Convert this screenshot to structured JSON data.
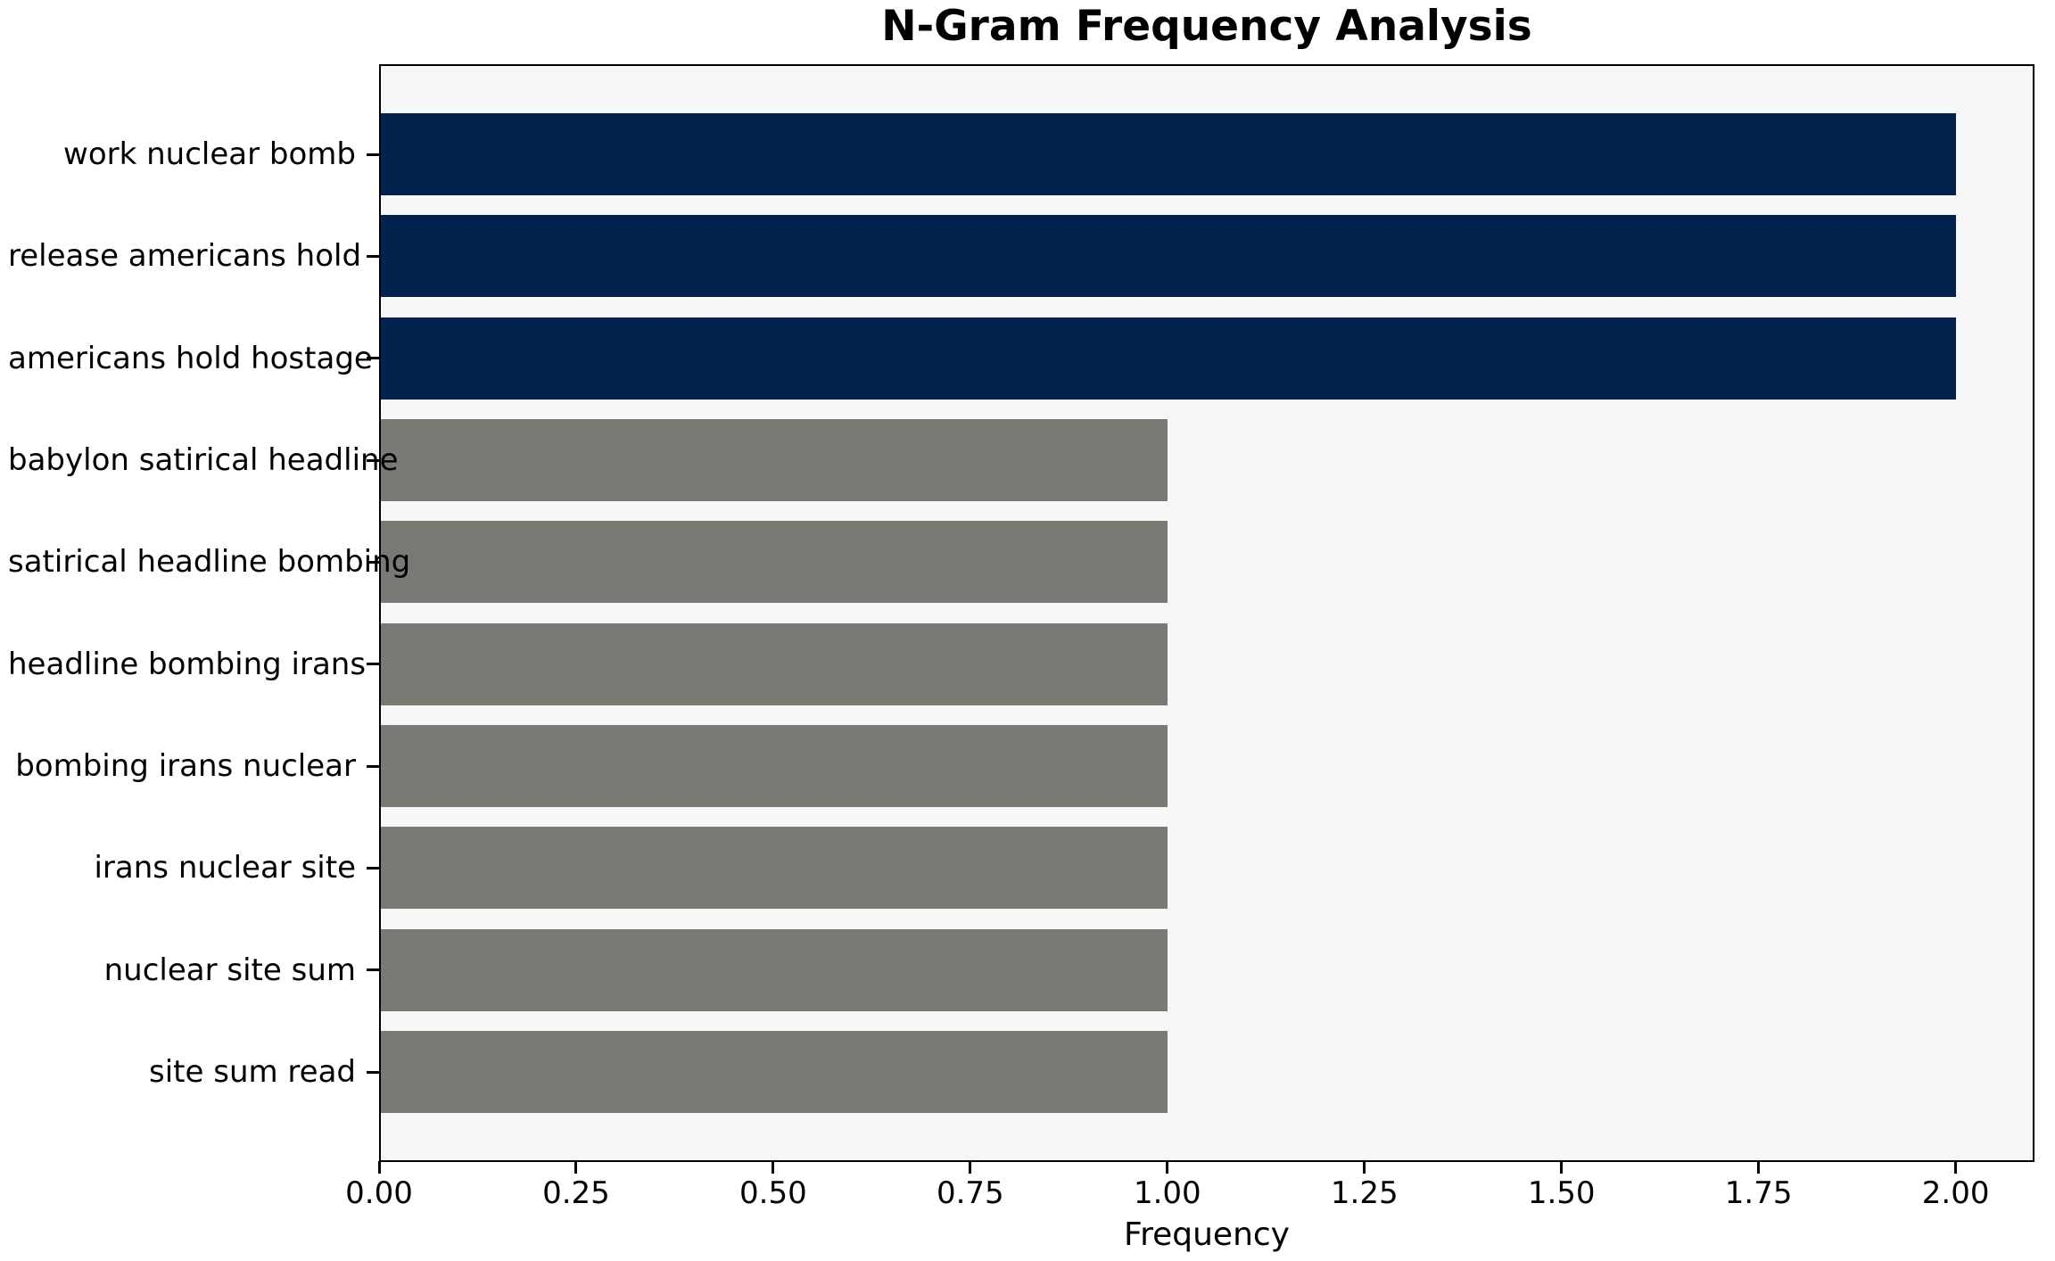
{
  "chart_data": {
    "type": "bar",
    "orientation": "horizontal",
    "title": "N-Gram Frequency Analysis",
    "xlabel": "Frequency",
    "ylabel": "",
    "categories": [
      "work nuclear bomb",
      "release americans hold",
      "americans hold hostage",
      "babylon satirical headline",
      "satirical headline bombing",
      "headline bombing irans",
      "bombing irans nuclear",
      "irans nuclear site",
      "nuclear site sum",
      "site sum read"
    ],
    "values": [
      2,
      2,
      2,
      1,
      1,
      1,
      1,
      1,
      1,
      1
    ],
    "bar_colors": [
      "#02234e",
      "#02234e",
      "#02234e",
      "#7a7a75",
      "#7a7a75",
      "#7a7a75",
      "#7a7a75",
      "#7a7a75",
      "#7a7a75",
      "#7a7a75"
    ],
    "xlim": [
      0,
      2.1
    ],
    "x_ticks": [
      0.0,
      0.25,
      0.5,
      0.75,
      1.0,
      1.25,
      1.5,
      1.75,
      2.0
    ],
    "x_tick_labels": [
      "0.00",
      "0.25",
      "0.50",
      "0.75",
      "1.00",
      "1.25",
      "1.50",
      "1.75",
      "2.00"
    ],
    "grid": false,
    "legend": null,
    "colors": {
      "highlight_bar": "#02234e",
      "default_bar": "#7a7a75",
      "plot_background": "#f7f7f7",
      "figure_background": "#ffffff",
      "axis": "#000000",
      "text": "#000000"
    }
  }
}
